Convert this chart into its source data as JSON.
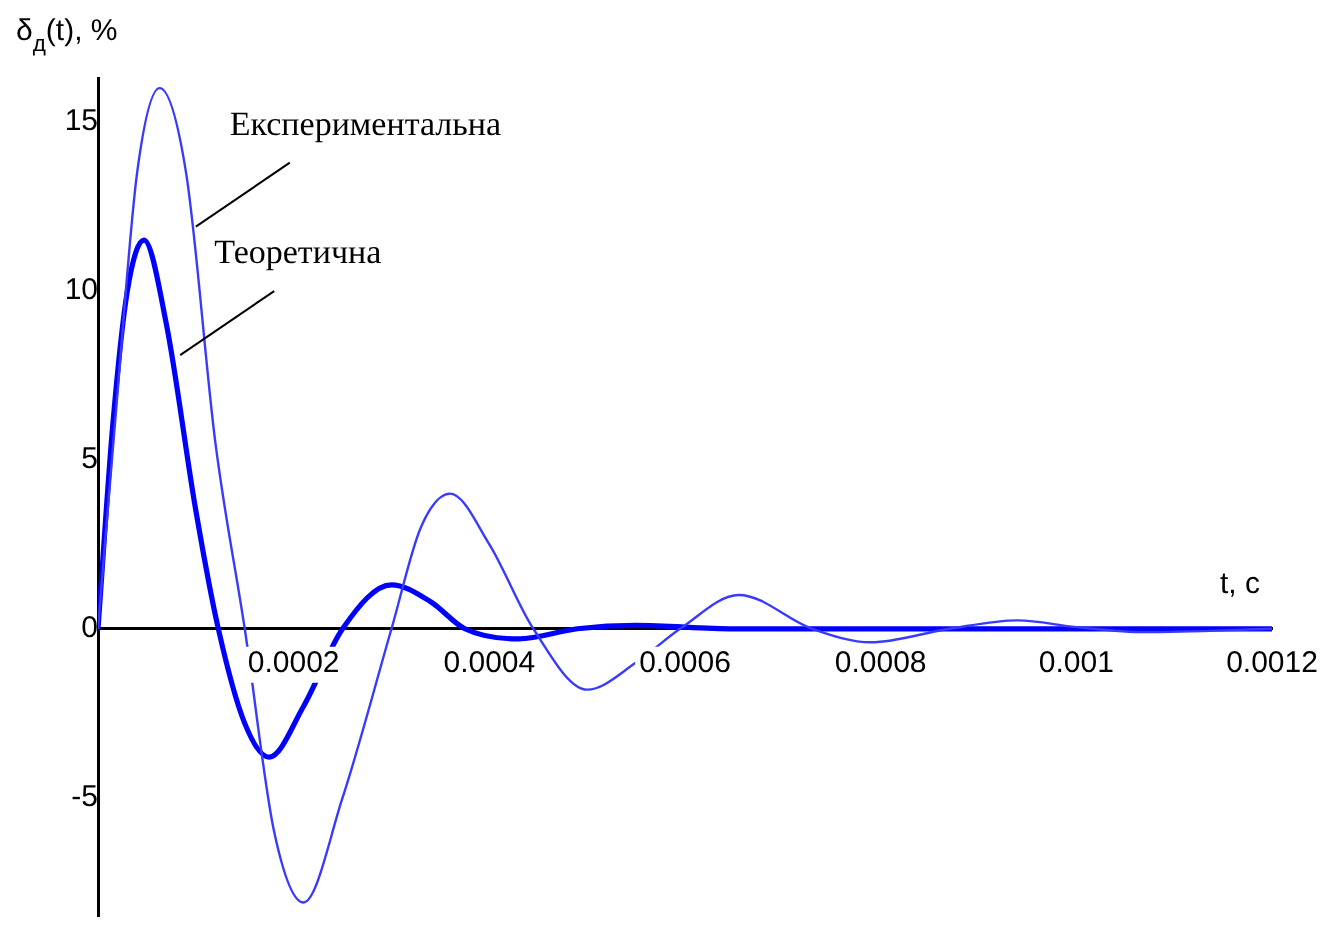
{
  "chart_data": {
    "type": "line",
    "xlabel": "t, c",
    "ylabel": "δ$_{д}$(t), %",
    "xlim": [
      0,
      0.0012
    ],
    "xticks": [
      0.0002,
      0.0004,
      0.0006,
      0.0008,
      0.001,
      0.0012
    ],
    "ylim": [
      -8.5,
      16.3
    ],
    "yticks": [
      -5,
      0,
      5,
      10,
      15
    ],
    "grid": false,
    "legend": false,
    "marker": "none",
    "line_style": "solid",
    "series": [
      {
        "color": "#3a3aff",
        "x": [
          0,
          2e-05,
          4e-05,
          6.3e-05,
          9e-05,
          0.00012,
          0.00015,
          0.00018,
          0.00021,
          0.00025,
          0.0003,
          0.00033,
          0.00036,
          0.0004,
          0.000445,
          0.0005,
          0.00055,
          0.000595,
          0.000655,
          0.00073,
          0.00079,
          0.00087,
          0.00094,
          0.001,
          0.00107,
          0.0012
        ],
        "values": [
          0,
          7,
          13.5,
          16,
          13.5,
          5.5,
          0,
          -6,
          -8.1,
          -5,
          0,
          3,
          4,
          2.5,
          0,
          -1.8,
          -1,
          0,
          1,
          0,
          -0.4,
          0,
          0.25,
          0.05,
          -0.1,
          0
        ]
      },
      {
        "color": "#0000ff",
        "x": [
          0,
          1.5e-05,
          3e-05,
          4.7e-05,
          7e-05,
          0.0001,
          0.000123,
          0.00015,
          0.000175,
          0.00021,
          0.00025,
          0.0003,
          0.00034,
          0.000375,
          0.00043,
          0.00049,
          0.00055,
          0.00065,
          0.0008,
          0.0012
        ],
        "values": [
          0,
          6,
          10,
          11.5,
          9,
          3.5,
          0,
          -2.8,
          -3.8,
          -2.3,
          0,
          1.3,
          0.8,
          0,
          -0.3,
          0,
          0.1,
          0,
          0,
          0
        ]
      }
    ],
    "annotations": [
      {
        "text": "Експериментальна",
        "x": 0.0001,
        "y": 11.9
      },
      {
        "text": "Теоретична",
        "x": 8.4e-05,
        "y": 8.1
      }
    ]
  }
}
